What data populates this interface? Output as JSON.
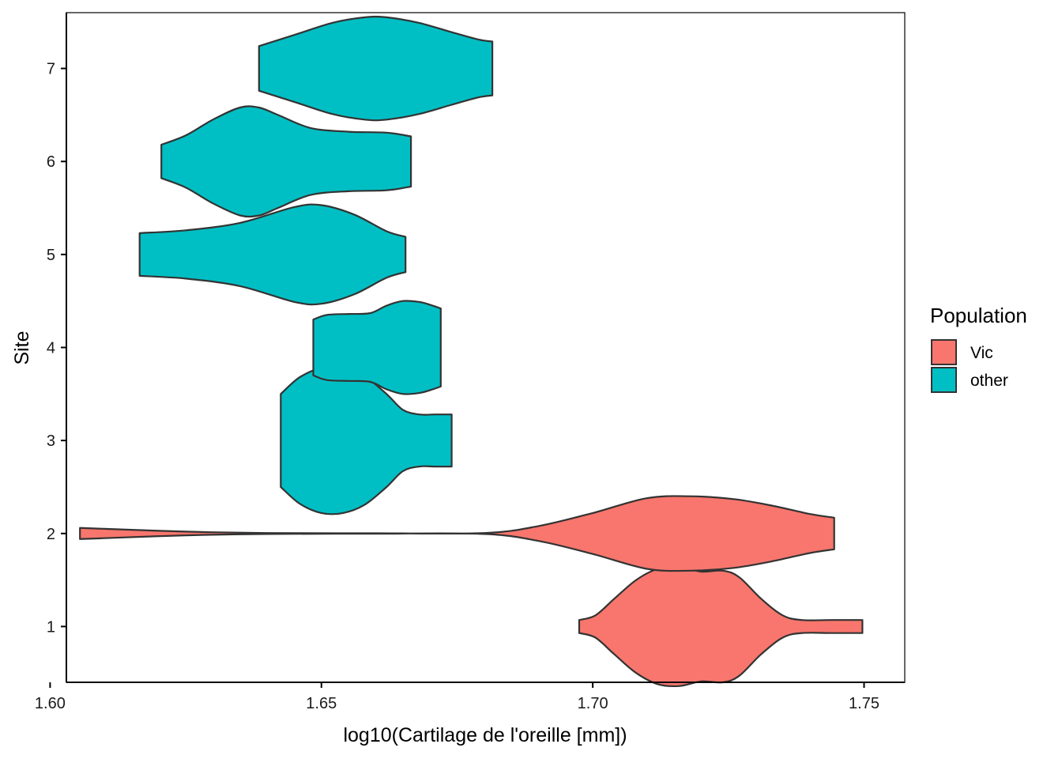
{
  "chart_data": {
    "type": "violin",
    "orientation": "horizontal",
    "title": "",
    "xlabel": "log10(Cartilage de l'oreille  [mm])",
    "ylabel": "Site",
    "xlim": [
      1.603,
      1.7575
    ],
    "ylim": [
      0.4,
      7.6
    ],
    "x_ticks": [
      1.6,
      1.65,
      1.7,
      1.75
    ],
    "x_tick_labels": [
      "1.60",
      "1.65",
      "1.70",
      "1.75"
    ],
    "y_ticks": [
      1,
      2,
      3,
      4,
      5,
      6,
      7
    ],
    "y_tick_labels": [
      "1",
      "2",
      "3",
      "4",
      "5",
      "6",
      "7"
    ],
    "grid": false,
    "legend": {
      "title": "Population",
      "position": "right",
      "entries": [
        {
          "label": "Vic",
          "color": "#F8766D"
        },
        {
          "label": "other",
          "color": "#00BFC4"
        }
      ]
    },
    "colors": {
      "Vic": "#F8766D",
      "other": "#00BFC4",
      "outline": "#333333"
    },
    "violins": [
      {
        "site": 1,
        "population": "Vic",
        "range": [
          1.6975,
          1.7497
        ],
        "profile": [
          [
            1.6975,
            0.07
          ],
          [
            1.7005,
            0.12
          ],
          [
            1.704,
            0.3
          ],
          [
            1.708,
            0.5
          ],
          [
            1.712,
            0.62
          ],
          [
            1.716,
            0.64
          ],
          [
            1.72,
            0.59
          ],
          [
            1.724,
            0.6
          ],
          [
            1.727,
            0.53
          ],
          [
            1.731,
            0.3
          ],
          [
            1.735,
            0.12
          ],
          [
            1.7385,
            0.07
          ],
          [
            1.744,
            0.07
          ],
          [
            1.7497,
            0.07
          ]
        ]
      },
      {
        "site": 2,
        "population": "Vic",
        "range": [
          1.6055,
          1.7445
        ],
        "profile": [
          [
            1.6055,
            0.06
          ],
          [
            1.61,
            0.05
          ],
          [
            1.625,
            0.02
          ],
          [
            1.64,
            0.005
          ],
          [
            1.66,
            0.002
          ],
          [
            1.68,
            0.005
          ],
          [
            1.69,
            0.08
          ],
          [
            1.7,
            0.22
          ],
          [
            1.71,
            0.38
          ],
          [
            1.718,
            0.4
          ],
          [
            1.726,
            0.37
          ],
          [
            1.733,
            0.3
          ],
          [
            1.74,
            0.21
          ],
          [
            1.7445,
            0.17
          ]
        ]
      },
      {
        "site": 3,
        "population": "other",
        "range": [
          1.6425,
          1.674
        ],
        "profile": [
          [
            1.6425,
            0.5
          ],
          [
            1.646,
            0.68
          ],
          [
            1.65,
            0.78
          ],
          [
            1.654,
            0.78
          ],
          [
            1.658,
            0.69
          ],
          [
            1.662,
            0.5
          ],
          [
            1.665,
            0.33
          ],
          [
            1.668,
            0.28
          ],
          [
            1.671,
            0.28
          ],
          [
            1.674,
            0.28
          ]
        ]
      },
      {
        "site": 4,
        "population": "other",
        "range": [
          1.6485,
          1.672
        ],
        "profile": [
          [
            1.6485,
            0.3
          ],
          [
            1.651,
            0.35
          ],
          [
            1.655,
            0.36
          ],
          [
            1.659,
            0.37
          ],
          [
            1.662,
            0.45
          ],
          [
            1.665,
            0.5
          ],
          [
            1.668,
            0.49
          ],
          [
            1.67,
            0.46
          ],
          [
            1.672,
            0.42
          ]
        ]
      },
      {
        "site": 5,
        "population": "other",
        "range": [
          1.6165,
          1.6655
        ],
        "profile": [
          [
            1.6165,
            0.23
          ],
          [
            1.625,
            0.26
          ],
          [
            1.635,
            0.34
          ],
          [
            1.645,
            0.51
          ],
          [
            1.65,
            0.53
          ],
          [
            1.656,
            0.43
          ],
          [
            1.662,
            0.25
          ],
          [
            1.6655,
            0.19
          ]
        ]
      },
      {
        "site": 6,
        "population": "other",
        "range": [
          1.6205,
          1.6665
        ],
        "profile": [
          [
            1.6205,
            0.18
          ],
          [
            1.625,
            0.28
          ],
          [
            1.63,
            0.45
          ],
          [
            1.635,
            0.58
          ],
          [
            1.6385,
            0.58
          ],
          [
            1.642,
            0.5
          ],
          [
            1.648,
            0.36
          ],
          [
            1.655,
            0.32
          ],
          [
            1.662,
            0.31
          ],
          [
            1.6665,
            0.27
          ]
        ]
      },
      {
        "site": 7,
        "population": "other",
        "range": [
          1.6385,
          1.6815
        ],
        "profile": [
          [
            1.6385,
            0.24
          ],
          [
            1.645,
            0.36
          ],
          [
            1.652,
            0.49
          ],
          [
            1.658,
            0.55
          ],
          [
            1.662,
            0.55
          ],
          [
            1.668,
            0.49
          ],
          [
            1.674,
            0.39
          ],
          [
            1.679,
            0.31
          ],
          [
            1.6815,
            0.29
          ]
        ]
      }
    ]
  }
}
